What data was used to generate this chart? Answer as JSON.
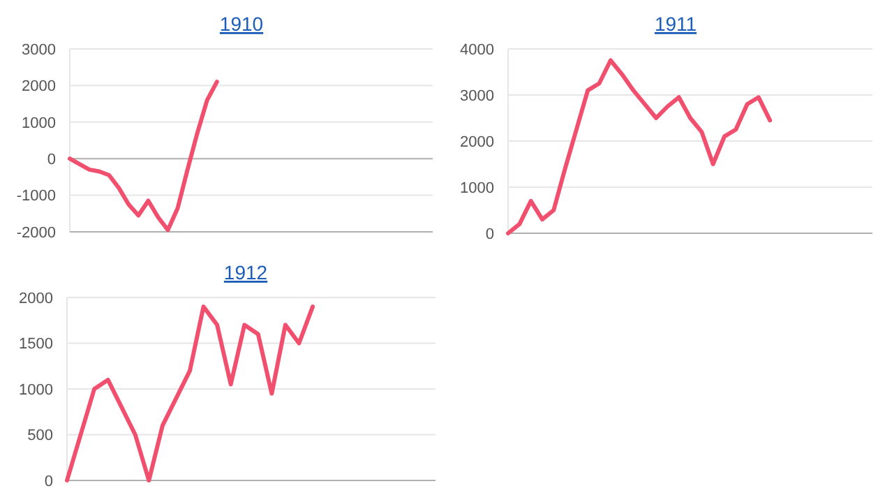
{
  "chart_data": [
    {
      "type": "line",
      "title": "1910",
      "categories": [
        null,
        null,
        null,
        null,
        null,
        null,
        null,
        null,
        null,
        null,
        null,
        null,
        null,
        null,
        null,
        null,
        null,
        null,
        null,
        null,
        null,
        null,
        null,
        null,
        null,
        null,
        null,
        null,
        null,
        null,
        null,
        null,
        null,
        null,
        null,
        null,
        null,
        null
      ],
      "ylim": [
        -2000,
        3000
      ],
      "yticks": [
        -2000,
        -1000,
        0,
        1000,
        2000,
        3000
      ],
      "grid": "y",
      "tick_labels": "y",
      "series": [
        {
          "color": "#f0506e",
          "values": [
            0,
            -150,
            -300,
            -350,
            -450,
            -800,
            -1250,
            -1550,
            -1150,
            -1600,
            -1950,
            -1350,
            -300,
            700,
            1600,
            2100,
            null,
            null,
            null,
            null,
            null,
            null,
            null,
            null,
            null,
            null,
            null,
            null,
            null,
            null,
            null,
            null,
            null,
            null,
            null,
            null,
            null,
            null
          ]
        }
      ]
    },
    {
      "type": "line",
      "title": "1911",
      "categories": [
        null,
        null,
        null,
        null,
        null,
        null,
        null,
        null,
        null,
        null,
        null,
        null,
        null,
        null,
        null,
        null,
        null,
        null,
        null,
        null,
        null,
        null,
        null,
        null,
        null,
        null,
        null,
        null,
        null,
        null,
        null,
        null,
        null
      ],
      "ylim": [
        0,
        4000
      ],
      "yticks": [
        0,
        1000,
        2000,
        3000,
        4000
      ],
      "grid": "y",
      "tick_labels": "y",
      "series": [
        {
          "color": "#f0506e",
          "values": [
            0,
            200,
            700,
            300,
            500,
            1400,
            2250,
            3100,
            3250,
            3750,
            3450,
            3100,
            2800,
            2500,
            2750,
            2950,
            2500,
            2200,
            1500,
            2100,
            2250,
            2800,
            2950,
            2450,
            null,
            null,
            null,
            null,
            null,
            null,
            null,
            null,
            null
          ]
        }
      ]
    },
    {
      "type": "line",
      "title": "1912",
      "categories": [
        null,
        null,
        null,
        null,
        null,
        null,
        null,
        null,
        null,
        null,
        null,
        null,
        null,
        null,
        null,
        null,
        null,
        null,
        null,
        null,
        null,
        null,
        null,
        null,
        null,
        null,
        null,
        null
      ],
      "ylim": [
        0,
        2000
      ],
      "yticks": [
        0,
        500,
        1000,
        1500,
        2000
      ],
      "grid": "y",
      "tick_labels": "y",
      "series": [
        {
          "color": "#f0506e",
          "values": [
            0,
            500,
            1000,
            1100,
            800,
            500,
            0,
            600,
            900,
            1200,
            1900,
            1700,
            1050,
            1700,
            1600,
            950,
            1700,
            1500,
            1900,
            null,
            null,
            null,
            null,
            null,
            null,
            null,
            null,
            null
          ]
        }
      ]
    }
  ]
}
